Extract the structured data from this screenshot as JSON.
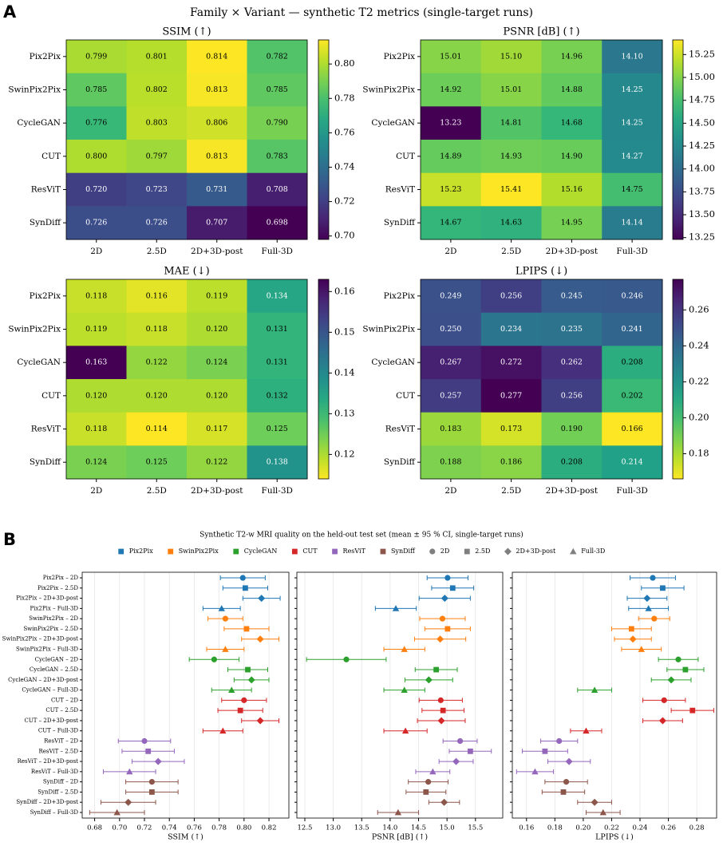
{
  "figure_title": "Family × Variant — synthetic T2 metrics (single-target runs)",
  "panel_labels": [
    "A",
    "B"
  ],
  "panel_b_title": "Synthetic T2-w MRI quality on the held-out test set (mean ± 95 % CI, single-target runs)",
  "legend": {
    "families": [
      {
        "name": "Pix2Pix",
        "color": "#1f77b4"
      },
      {
        "name": "SwinPix2Pix",
        "color": "#ff7f0e"
      },
      {
        "name": "CycleGAN",
        "color": "#2ca02c"
      },
      {
        "name": "CUT",
        "color": "#d62728"
      },
      {
        "name": "ResViT",
        "color": "#9467bd"
      },
      {
        "name": "SynDiff",
        "color": "#8c564b"
      }
    ],
    "variants": [
      {
        "name": "2D",
        "marker": "circle"
      },
      {
        "name": "2.5D",
        "marker": "square"
      },
      {
        "name": "2D+3D-post",
        "marker": "diamond"
      },
      {
        "name": "Full-3D",
        "marker": "triangle"
      }
    ],
    "marker_color": "#7f7f7f"
  },
  "chart_data": [
    {
      "type": "heatmap",
      "title": "SSIM (↑)",
      "colormap": "viridis",
      "rows": [
        "Pix2Pix",
        "SwinPix2Pix",
        "CycleGAN",
        "CUT",
        "ResViT",
        "SynDiff"
      ],
      "columns": [
        "2D",
        "2.5D",
        "2D+3D-post",
        "Full-3D"
      ],
      "values": [
        [
          0.799,
          0.801,
          0.814,
          0.782
        ],
        [
          0.785,
          0.802,
          0.813,
          0.785
        ],
        [
          0.776,
          0.803,
          0.806,
          0.79
        ],
        [
          0.8,
          0.797,
          0.813,
          0.783
        ],
        [
          0.72,
          0.723,
          0.731,
          0.708
        ],
        [
          0.726,
          0.726,
          0.707,
          0.698
        ]
      ],
      "value_labels": [
        [
          "0.799",
          "0.801",
          "0.814",
          "0.782"
        ],
        [
          "0.785",
          "0.802",
          "0.813",
          "0.785"
        ],
        [
          "0.776",
          "0.803",
          "0.806",
          "0.790"
        ],
        [
          "0.800",
          "0.797",
          "0.813",
          "0.783"
        ],
        [
          "0.720",
          "0.723",
          "0.731",
          "0.708"
        ],
        [
          "0.726",
          "0.726",
          "0.707",
          "0.698"
        ]
      ],
      "clim": [
        0.698,
        0.814
      ],
      "cticks": [
        {
          "value": 0.7,
          "label": "0.70"
        },
        0.72,
        0.74,
        0.76,
        0.78,
        {
          "value": 0.8,
          "label": "0.80"
        }
      ]
    },
    {
      "type": "heatmap",
      "title": "PSNR [dB] (↑)",
      "colormap": "viridis",
      "rows": [
        "Pix2Pix",
        "SwinPix2Pix",
        "CycleGAN",
        "CUT",
        "ResViT",
        "SynDiff"
      ],
      "columns": [
        "2D",
        "2.5D",
        "2D+3D-post",
        "Full-3D"
      ],
      "values": [
        [
          15.01,
          15.1,
          14.96,
          14.1
        ],
        [
          14.92,
          15.01,
          14.88,
          14.25
        ],
        [
          13.23,
          14.81,
          14.68,
          14.25
        ],
        [
          14.89,
          14.93,
          14.9,
          14.27
        ],
        [
          15.23,
          15.41,
          15.16,
          14.75
        ],
        [
          14.67,
          14.63,
          14.95,
          14.14
        ]
      ],
      "value_labels": [
        [
          "15.01",
          "15.10",
          "14.96",
          "14.10"
        ],
        [
          "14.92",
          "15.01",
          "14.88",
          "14.25"
        ],
        [
          "13.23",
          "14.81",
          "14.68",
          "14.25"
        ],
        [
          "14.89",
          "14.93",
          "14.90",
          "14.27"
        ],
        [
          "15.23",
          "15.41",
          "15.16",
          "14.75"
        ],
        [
          "14.67",
          "14.63",
          "14.95",
          "14.14"
        ]
      ],
      "clim": [
        13.23,
        15.41
      ],
      "cticks": [
        13.25,
        {
          "value": 13.5,
          "label": "13.50"
        },
        13.75,
        {
          "value": 14,
          "label": "14.00"
        },
        14.25,
        {
          "value": 14.5,
          "label": "14.50"
        },
        14.75,
        {
          "value": 15,
          "label": "15.00"
        },
        15.25
      ]
    },
    {
      "type": "heatmap",
      "title": "MAE (↓)",
      "colormap": "viridis_r",
      "rows": [
        "Pix2Pix",
        "SwinPix2Pix",
        "CycleGAN",
        "CUT",
        "ResViT",
        "SynDiff"
      ],
      "columns": [
        "2D",
        "2.5D",
        "2D+3D-post",
        "Full-3D"
      ],
      "values": [
        [
          0.118,
          0.116,
          0.119,
          0.134
        ],
        [
          0.119,
          0.118,
          0.12,
          0.131
        ],
        [
          0.163,
          0.122,
          0.124,
          0.131
        ],
        [
          0.12,
          0.12,
          0.12,
          0.132
        ],
        [
          0.118,
          0.114,
          0.117,
          0.125
        ],
        [
          0.124,
          0.125,
          0.122,
          0.138
        ]
      ],
      "value_labels": [
        [
          "0.118",
          "0.116",
          "0.119",
          "0.134"
        ],
        [
          "0.119",
          "0.118",
          "0.120",
          "0.131"
        ],
        [
          "0.163",
          "0.122",
          "0.124",
          "0.131"
        ],
        [
          "0.120",
          "0.120",
          "0.120",
          "0.132"
        ],
        [
          "0.118",
          "0.114",
          "0.117",
          "0.125"
        ],
        [
          "0.124",
          "0.125",
          "0.122",
          "0.138"
        ]
      ],
      "clim": [
        0.114,
        0.163
      ],
      "cticks": [
        0.12,
        0.13,
        0.14,
        0.15,
        0.16
      ]
    },
    {
      "type": "heatmap",
      "title": "LPIPS (↓)",
      "colormap": "viridis_r",
      "rows": [
        "Pix2Pix",
        "SwinPix2Pix",
        "CycleGAN",
        "CUT",
        "ResViT",
        "SynDiff"
      ],
      "columns": [
        "2D",
        "2.5D",
        "2D+3D-post",
        "Full-3D"
      ],
      "values": [
        [
          0.249,
          0.256,
          0.245,
          0.246
        ],
        [
          0.25,
          0.234,
          0.235,
          0.241
        ],
        [
          0.267,
          0.272,
          0.262,
          0.208
        ],
        [
          0.257,
          0.277,
          0.256,
          0.202
        ],
        [
          0.183,
          0.173,
          0.19,
          0.166
        ],
        [
          0.188,
          0.186,
          0.208,
          0.214
        ]
      ],
      "value_labels": [
        [
          "0.249",
          "0.256",
          "0.245",
          "0.246"
        ],
        [
          "0.250",
          "0.234",
          "0.235",
          "0.241"
        ],
        [
          "0.267",
          "0.272",
          "0.262",
          "0.208"
        ],
        [
          "0.257",
          "0.277",
          "0.256",
          "0.202"
        ],
        [
          "0.183",
          "0.173",
          "0.190",
          "0.166"
        ],
        [
          "0.188",
          "0.186",
          "0.208",
          "0.214"
        ]
      ],
      "clim": [
        0.166,
        0.277
      ],
      "cticks": [
        0.18,
        {
          "value": 0.2,
          "label": "0.20"
        },
        0.22,
        0.24,
        0.26
      ]
    },
    {
      "type": "forest",
      "xlabel": "SSIM (↑)",
      "categories": [
        "Pix2Pix – 2D",
        "Pix2Pix – 2.5D",
        "Pix2Pix – 2D+3D-post",
        "Pix2Pix – Full-3D",
        "SwinPix2Pix – 2D",
        "SwinPix2Pix – 2.5D",
        "SwinPix2Pix – 2D+3D-post",
        "SwinPix2Pix – Full-3D",
        "CycleGAN – 2D",
        "CycleGAN – 2.5D",
        "CycleGAN – 2D+3D-post",
        "CycleGAN – Full-3D",
        "CUT – 2D",
        "CUT – 2.5D",
        "CUT – 2D+3D-post",
        "CUT – Full-3D",
        "ResViT – 2D",
        "ResViT – 2.5D",
        "ResViT – 2D+3D-post",
        "ResViT – Full-3D",
        "SynDiff – 2D",
        "SynDiff – 2.5D",
        "SynDiff – 2D+3D-post",
        "SynDiff – Full-3D"
      ],
      "values": [
        [
          0.799,
          0.801,
          0.814,
          0.782
        ],
        [
          0.785,
          0.802,
          0.813,
          0.785
        ],
        [
          0.776,
          0.803,
          0.806,
          0.79
        ],
        [
          0.8,
          0.797,
          0.813,
          0.783
        ],
        [
          0.72,
          0.723,
          0.731,
          0.708
        ],
        [
          0.726,
          0.726,
          0.707,
          0.698
        ]
      ],
      "errors": [
        [
          0.018,
          0.018,
          0.015,
          0.015
        ],
        [
          0.014,
          0.018,
          0.015,
          0.015
        ],
        [
          0.02,
          0.016,
          0.014,
          0.016
        ],
        [
          0.018,
          0.018,
          0.015,
          0.016
        ],
        [
          0.021,
          0.021,
          0.021,
          0.021
        ],
        [
          0.021,
          0.021,
          0.022,
          0.022
        ]
      ],
      "xlim": [
        0.67,
        0.836
      ],
      "xticks": [
        0.68,
        {
          "value": 0.7,
          "label": "0.70"
        },
        0.72,
        0.74,
        0.76,
        0.78,
        {
          "value": 0.8,
          "label": "0.80"
        },
        0.82
      ],
      "grid": true
    },
    {
      "type": "forest",
      "xlabel": "PSNR [dB] (↑)",
      "values": [
        [
          15.01,
          15.1,
          14.96,
          14.1
        ],
        [
          14.92,
          15.01,
          14.88,
          14.25
        ],
        [
          13.23,
          14.81,
          14.68,
          14.25
        ],
        [
          14.89,
          14.93,
          14.9,
          14.27
        ],
        [
          15.23,
          15.41,
          15.16,
          14.75
        ],
        [
          14.67,
          14.63,
          14.95,
          14.14
        ]
      ],
      "errors": [
        [
          0.36,
          0.37,
          0.45,
          0.36
        ],
        [
          0.4,
          0.4,
          0.45,
          0.36
        ],
        [
          0.7,
          0.37,
          0.42,
          0.36
        ],
        [
          0.38,
          0.37,
          0.42,
          0.38
        ],
        [
          0.3,
          0.37,
          0.3,
          0.3
        ],
        [
          0.35,
          0.35,
          0.27,
          0.36
        ]
      ],
      "xlim": [
        12.36,
        15.98
      ],
      "xticks": [
        12.5,
        {
          "value": 13,
          "label": "13.0"
        },
        13.5,
        {
          "value": 14,
          "label": "14.0"
        },
        14.5,
        {
          "value": 15,
          "label": "15.0"
        },
        15.5
      ],
      "grid": true
    },
    {
      "type": "forest",
      "xlabel": "LPIPS (↓)",
      "values": [
        [
          0.249,
          0.256,
          0.245,
          0.246
        ],
        [
          0.25,
          0.234,
          0.235,
          0.241
        ],
        [
          0.267,
          0.272,
          0.262,
          0.208
        ],
        [
          0.257,
          0.277,
          0.256,
          0.202
        ],
        [
          0.183,
          0.173,
          0.19,
          0.166
        ],
        [
          0.188,
          0.186,
          0.208,
          0.214
        ]
      ],
      "errors": [
        [
          0.016,
          0.015,
          0.014,
          0.014
        ],
        [
          0.011,
          0.014,
          0.013,
          0.014
        ],
        [
          0.014,
          0.013,
          0.014,
          0.012
        ],
        [
          0.015,
          0.015,
          0.014,
          0.011
        ],
        [
          0.013,
          0.016,
          0.015,
          0.013
        ],
        [
          0.015,
          0.015,
          0.012,
          0.012
        ]
      ],
      "xlim": [
        0.15,
        0.294
      ],
      "xticks": [
        0.16,
        0.18,
        {
          "value": 0.2,
          "label": "0.20"
        },
        0.22,
        0.24,
        0.26,
        0.28
      ],
      "grid": true
    }
  ]
}
